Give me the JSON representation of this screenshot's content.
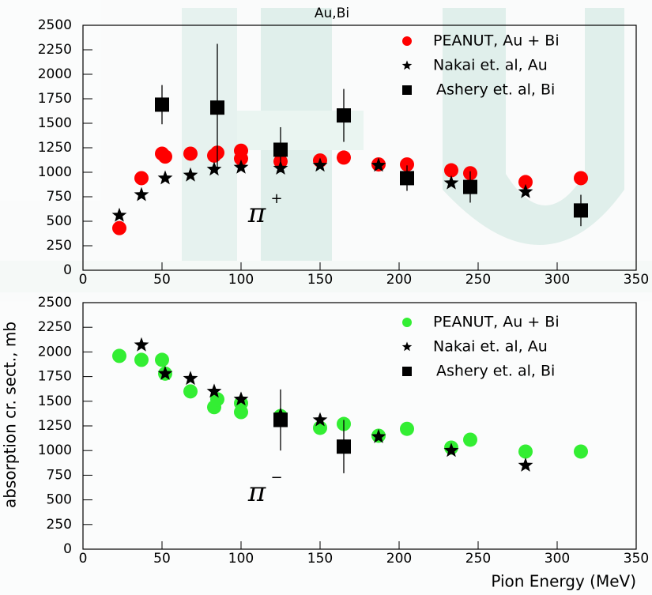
{
  "chart_data": [
    {
      "type": "scatter",
      "title": "Au,Bi",
      "annotations": [
        {
          "text": "π",
          "superscript": "+",
          "color": "#ff0000"
        }
      ],
      "xlim": [
        0,
        350
      ],
      "xticks": [
        0,
        50,
        100,
        150,
        200,
        250,
        300,
        350
      ],
      "ylim": [
        0,
        2500
      ],
      "yticks": [
        0,
        250,
        500,
        750,
        1000,
        1250,
        1500,
        1750,
        2000,
        2250,
        2500
      ],
      "series": [
        {
          "name": "PEANUT, Au + Bi",
          "color": "#ff0000",
          "marker": "circle",
          "x": [
            23,
            37,
            50,
            52,
            68,
            83,
            85,
            100,
            100,
            125,
            150,
            165,
            187,
            205,
            233,
            245,
            280,
            315
          ],
          "values": [
            430,
            940,
            1190,
            1160,
            1190,
            1170,
            1200,
            1220,
            1140,
            1110,
            1120,
            1150,
            1080,
            1080,
            1020,
            990,
            900,
            940
          ]
        },
        {
          "name": "Nakai et. al, Au",
          "color": "#000000",
          "marker": "star",
          "x": [
            23,
            37,
            52,
            68,
            83,
            100,
            125,
            150,
            187,
            233,
            280
          ],
          "values": [
            560,
            770,
            940,
            970,
            1030,
            1050,
            1040,
            1070,
            1070,
            890,
            800
          ]
        },
        {
          "name": "Ashery et. al, Bi",
          "color": "#000000",
          "marker": "square",
          "x": [
            50,
            85,
            125,
            165,
            205,
            245,
            315
          ],
          "values": [
            1690,
            1660,
            1230,
            1580,
            940,
            850,
            610
          ],
          "errors": [
            200,
            650,
            230,
            270,
            130,
            160,
            160
          ]
        }
      ]
    },
    {
      "type": "scatter",
      "annotations": [
        {
          "text": "π",
          "superscript": "−",
          "color": "#33ee33"
        }
      ],
      "xlabel": "Pion Energy (MeV)",
      "ylabel": "absorption cr. sect., mb",
      "xlim": [
        0,
        350
      ],
      "xticks": [
        0,
        50,
        100,
        150,
        200,
        250,
        300,
        350
      ],
      "ylim": [
        0,
        2500
      ],
      "yticks": [
        0,
        250,
        500,
        750,
        1000,
        1250,
        1500,
        1750,
        2000,
        2250,
        2500
      ],
      "series": [
        {
          "name": "PEANUT, Au + Bi",
          "color": "#33ee33",
          "marker": "circle",
          "x": [
            23,
            37,
            50,
            52,
            68,
            83,
            85,
            100,
            100,
            125,
            150,
            165,
            187,
            205,
            233,
            245,
            280,
            315
          ],
          "values": [
            1960,
            1920,
            1920,
            1780,
            1600,
            1440,
            1520,
            1480,
            1390,
            1350,
            1230,
            1270,
            1150,
            1220,
            1030,
            1110,
            990,
            990
          ]
        },
        {
          "name": "Nakai et. al, Au",
          "color": "#000000",
          "marker": "star",
          "x": [
            37,
            52,
            68,
            83,
            100,
            125,
            150,
            187,
            233,
            280
          ],
          "values": [
            2070,
            1780,
            1730,
            1600,
            1520,
            1360,
            1310,
            1140,
            1000,
            850
          ]
        },
        {
          "name": "Ashery et. al, Bi",
          "color": "#000000",
          "marker": "square",
          "x": [
            125,
            165
          ],
          "values": [
            1310,
            1040
          ],
          "errors": [
            310,
            270
          ]
        }
      ]
    }
  ]
}
